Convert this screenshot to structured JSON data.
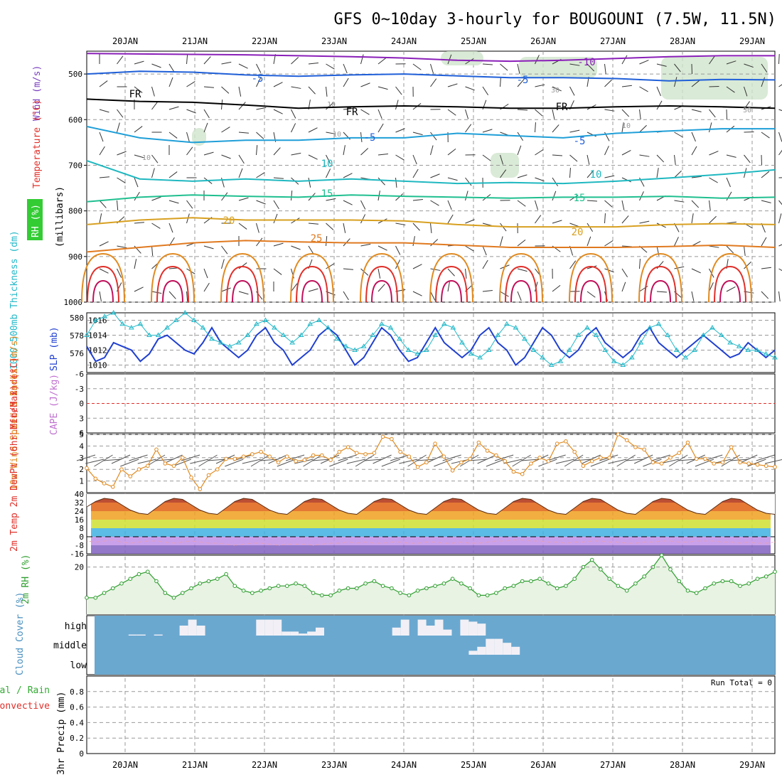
{
  "title": "GFS 0~10day 3-hourly for BOUGOUNI (7.5W, 11.5N)",
  "colors": {
    "temperature": "#e0302a",
    "wind": "#7a3fbf",
    "rh": "#33aa33",
    "slp": "#1f3fd0",
    "thickness": "#22b8c8",
    "lifted_index": "#e0302a",
    "cape": "#c070d0",
    "wind10m": "#e08a20",
    "cloud": "#6aa8d0",
    "rh2m": "#2e9e2e",
    "rh2m_fill": "#e8f3e4",
    "precip_total": "#33aa33",
    "precip_conv": "#e0302a",
    "grid": "#999999"
  },
  "chart_data": [
    {
      "type": "line",
      "name": "upper-air-cross-section",
      "x_dates": [
        "20JAN",
        "21JAN",
        "22JAN",
        "23JAN",
        "24JAN",
        "25JAN",
        "26JAN",
        "27JAN",
        "28JAN",
        "29JAN"
      ],
      "ylabel": "(millibars)",
      "yticks": [
        "500",
        "600",
        "700",
        "800",
        "900",
        "1000"
      ],
      "ylim": [
        450,
        1000
      ],
      "side_labels": {
        "wind": "Wind (m/s)",
        "temperature": "Temperature (°C)",
        "rh": "RH (%)"
      },
      "isotherm_labels": [
        "-10",
        "-5",
        "-5",
        "FR",
        "FR",
        "FR",
        "-5",
        "-5",
        "10",
        "10",
        "15",
        "15",
        "20",
        "20",
        "25"
      ],
      "rh_labels": [
        "10",
        "10",
        "10",
        "30",
        "30",
        "10"
      ],
      "isotherms": [
        {
          "label": "-10",
          "pressure": [
            455,
            456,
            457,
            458,
            460,
            462,
            465,
            470,
            472,
            470,
            466,
            462,
            460,
            460
          ]
        },
        {
          "label": "-5",
          "pressure": [
            500,
            494,
            496,
            502,
            505,
            502,
            500,
            504,
            508,
            508,
            510,
            515,
            512,
            513
          ]
        },
        {
          "label": "FR",
          "pressure": [
            555,
            560,
            562,
            568,
            575,
            572,
            570,
            572,
            575,
            575,
            572,
            570,
            572,
            575
          ]
        },
        {
          "label": "5",
          "pressure": [
            615,
            640,
            650,
            645,
            645,
            640,
            640,
            630,
            635,
            640,
            630,
            625,
            620,
            620
          ]
        },
        {
          "label": "10",
          "pressure": [
            690,
            730,
            735,
            730,
            735,
            730,
            735,
            740,
            738,
            740,
            735,
            728,
            720,
            710
          ]
        },
        {
          "label": "15",
          "pressure": [
            780,
            770,
            765,
            768,
            770,
            765,
            768,
            770,
            772,
            770,
            770,
            768,
            772,
            770
          ]
        },
        {
          "label": "20",
          "pressure": [
            830,
            820,
            815,
            820,
            820,
            820,
            822,
            830,
            835,
            835,
            835,
            830,
            828,
            830
          ]
        },
        {
          "label": "25",
          "pressure": [
            890,
            880,
            870,
            865,
            868,
            870,
            870,
            875,
            880,
            880,
            880,
            878,
            875,
            880
          ]
        }
      ]
    },
    {
      "type": "line",
      "name": "slp-thickness",
      "ylabel_left": "1000-500mb Thickness (dm)",
      "ylabel_right": "SLP (mb)",
      "yticks_left": [
        "580",
        "578",
        "576"
      ],
      "yticks_right": [
        "1016",
        "1014",
        "1012",
        "1010"
      ],
      "ylim_slp": [
        1009,
        1017
      ],
      "series": [
        {
          "name": "SLP (mb)",
          "values": [
            1012.5,
            1010.5,
            1011,
            1013,
            1012.5,
            1012,
            1010.5,
            1011.5,
            1013.5,
            1014,
            1013,
            1012,
            1011.5,
            1013,
            1015,
            1013,
            1012,
            1011,
            1012,
            1014,
            1015,
            1013,
            1012,
            1010,
            1011,
            1012,
            1014,
            1015,
            1014,
            1012,
            1010,
            1011,
            1013,
            1015,
            1014,
            1012,
            1010.5,
            1011,
            1013,
            1015,
            1013,
            1012,
            1011,
            1012,
            1014,
            1015,
            1013,
            1012,
            1010,
            1011,
            1013,
            1015,
            1014,
            1012,
            1011,
            1012,
            1014,
            1015,
            1013,
            1012,
            1011,
            1012,
            1014,
            1015,
            1013,
            1012,
            1011,
            1012,
            1013,
            1014,
            1013,
            1012,
            1011,
            1011.5,
            1013,
            1012,
            1011,
            1012
          ]
        },
        {
          "name": "1000-500mb Thickness (dm)",
          "values": [
            1014,
            1016,
            1016.5,
            1017,
            1015.5,
            1015,
            1015.5,
            1014,
            1014,
            1015,
            1016,
            1017,
            1016,
            1015,
            1013.5,
            1013,
            1012.5,
            1013,
            1014,
            1015.5,
            1016,
            1015,
            1014,
            1013,
            1014,
            1015.5,
            1016,
            1015,
            1013.5,
            1012.5,
            1012,
            1012.5,
            1014,
            1015.5,
            1015,
            1013.5,
            1012,
            1011.5,
            1012,
            1014,
            1015.5,
            1015,
            1013,
            1011.5,
            1011,
            1012,
            1014,
            1015.5,
            1015,
            1013.5,
            1012,
            1011,
            1010,
            1010.5,
            1012,
            1014,
            1015,
            1014,
            1012,
            1010.5,
            1010,
            1011,
            1013,
            1015,
            1015.5,
            1014,
            1012,
            1011,
            1012,
            1014,
            1015,
            1014,
            1013,
            1012.5,
            1012,
            1012,
            1011.5,
            1011
          ]
        }
      ]
    },
    {
      "type": "line",
      "name": "lifted-index-cape",
      "ylabel_left": "Lifted Index",
      "ylabel_right": "CAPE (J/kg)",
      "yticks": [
        "-6",
        "-3",
        "0",
        "3",
        "6"
      ],
      "ylim": [
        -6,
        6
      ],
      "series": [
        {
          "name": "Lifted Index zero line",
          "values": [
            0,
            0
          ]
        }
      ]
    },
    {
      "type": "line",
      "name": "wind-10m",
      "ylabel": "10m Wind Speed & Barbs (m/s)",
      "yticks": [
        "5",
        "4",
        "3",
        "2",
        "1"
      ],
      "ylim": [
        0,
        5
      ],
      "series": [
        {
          "name": "10m Wind Speed",
          "values": [
            2.1,
            1.2,
            0.8,
            0.5,
            2,
            1.4,
            2,
            2.3,
            3.7,
            2.5,
            2.3,
            3,
            1.3,
            0.3,
            1.5,
            2,
            2.9,
            2.9,
            3.1,
            3.3,
            3.5,
            3.1,
            2.6,
            3.1,
            2.7,
            2.8,
            3.2,
            3.2,
            2.8,
            3.5,
            3.9,
            3.4,
            3.3,
            3.4,
            4.8,
            4.6,
            3.5,
            3.1,
            2.2,
            2.6,
            4.2,
            3.1,
            1.9,
            2.6,
            2.9,
            4.3,
            3.6,
            3.2,
            2.7,
            1.8,
            1.6,
            2.5,
            3,
            2.7,
            4.2,
            4.4,
            3.5,
            2.3,
            2.7,
            3,
            3,
            5,
            4.5,
            3.9,
            3.7,
            2.6,
            2.5,
            3,
            3.4,
            4.3,
            2.9,
            2.9,
            2.5,
            2.6,
            3.9,
            2.6,
            2.5,
            2.4,
            2.3,
            2.2
          ]
        }
      ]
    },
    {
      "type": "area",
      "name": "temperature-2m",
      "ylabel": "2m Temp 2m DewPt (6hr Min/Max) (°C)",
      "yticks": [
        "40",
        "32",
        "24",
        "16",
        "8",
        "0",
        "-8",
        "-16"
      ],
      "ylim": [
        -16,
        40
      ],
      "series": [
        {
          "name": "2m Temp",
          "values": [
            28,
            33,
            36,
            35,
            30,
            25,
            22,
            21,
            27,
            33,
            36,
            35,
            30,
            25,
            22,
            21,
            27,
            33,
            36,
            35,
            30,
            25,
            22,
            21,
            27,
            33,
            36,
            35,
            30,
            25,
            22,
            21,
            27,
            33,
            36,
            35,
            30,
            25,
            22,
            21,
            27,
            33,
            36,
            35,
            30,
            25,
            22,
            21,
            27,
            33,
            36,
            35,
            30,
            25,
            22,
            21,
            27,
            33,
            36,
            35,
            30,
            25,
            22,
            21,
            27,
            33,
            36,
            35,
            30,
            25,
            22,
            21,
            27,
            33,
            36,
            35,
            30,
            25,
            22,
            21
          ]
        },
        {
          "name": "2m DewPt",
          "values": [
            -4,
            -5,
            -4,
            -3,
            -5,
            -6,
            -5,
            -4,
            -4,
            -5,
            -6,
            -5,
            -4,
            -5,
            -6,
            -6,
            -7,
            -8,
            -7,
            -6,
            -6,
            -7,
            -8,
            -7,
            -7,
            -7,
            -8,
            -7,
            -6,
            -6,
            -5,
            -6,
            -5,
            -6,
            -6,
            -5,
            -5,
            -6,
            -6,
            -5,
            -5,
            -6,
            -6,
            -5,
            -6,
            -6,
            -5,
            -4,
            -4,
            -3,
            -3,
            -4,
            -4,
            -5,
            -5,
            -6,
            -5,
            -5,
            -4,
            -4,
            -5,
            -5,
            -6,
            -6,
            -5,
            -5,
            -4,
            -4,
            -5,
            -5,
            -4,
            -4,
            -4,
            -5,
            -5,
            -6,
            -5,
            -6,
            -6,
            -5
          ]
        }
      ]
    },
    {
      "type": "line",
      "name": "rh-2m",
      "ylabel": "2m RH (%)",
      "yticks": [
        "20"
      ],
      "ylim": [
        0,
        25
      ],
      "series": [
        {
          "name": "2m RH",
          "values": [
            7,
            7,
            9,
            11,
            13,
            15,
            17,
            18,
            14,
            9,
            7,
            9,
            11,
            13,
            14,
            15,
            17,
            12,
            10,
            9,
            10,
            11,
            12,
            12,
            13,
            12,
            9,
            8,
            8,
            10,
            11,
            11,
            13,
            14,
            12,
            11,
            9,
            8,
            10,
            11,
            12,
            13,
            15,
            13,
            11,
            8,
            8,
            9,
            11,
            12,
            14,
            14,
            15,
            13,
            11,
            12,
            15,
            20,
            23,
            19,
            15,
            12,
            10,
            13,
            16,
            20,
            25,
            19,
            14,
            10,
            9,
            11,
            13,
            14,
            14,
            12,
            13,
            15,
            16,
            18
          ]
        }
      ]
    },
    {
      "type": "heatmap",
      "name": "cloud-cover",
      "ylabel": "Cloud Cover (%)",
      "levels": [
        "high",
        "middle",
        "low"
      ],
      "series": [
        {
          "name": "high",
          "values": [
            0,
            0,
            0,
            0,
            5,
            5,
            0,
            5,
            0,
            0,
            50,
            80,
            50,
            0,
            0,
            0,
            0,
            0,
            0,
            80,
            80,
            80,
            20,
            20,
            10,
            20,
            40,
            0,
            0,
            0,
            0,
            0,
            0,
            0,
            0,
            40,
            80,
            0,
            80,
            50,
            80,
            30,
            0,
            80,
            70,
            60,
            0,
            0,
            0,
            0,
            0,
            0,
            0,
            0,
            0,
            0,
            0,
            0,
            0,
            0,
            0,
            0,
            0,
            0,
            0,
            0,
            0,
            0,
            0,
            0,
            0,
            0,
            0,
            0,
            0,
            0,
            0,
            0,
            0,
            0
          ]
        },
        {
          "name": "middle",
          "values": [
            0,
            0,
            0,
            0,
            0,
            0,
            0,
            0,
            0,
            0,
            0,
            0,
            0,
            0,
            0,
            0,
            0,
            0,
            0,
            0,
            0,
            0,
            0,
            0,
            0,
            0,
            0,
            0,
            0,
            0,
            0,
            0,
            0,
            0,
            0,
            0,
            0,
            0,
            0,
            0,
            0,
            0,
            0,
            0,
            20,
            40,
            80,
            80,
            60,
            40,
            0,
            0,
            0,
            0,
            0,
            0,
            0,
            0,
            0,
            0,
            0,
            0,
            0,
            0,
            0,
            0,
            0,
            0,
            0,
            0,
            0,
            0,
            0,
            0,
            0,
            0,
            0,
            0,
            0,
            0
          ]
        },
        {
          "name": "low",
          "values": [
            0,
            0,
            0,
            0,
            0,
            0,
            0,
            0,
            0,
            0,
            0,
            0,
            0,
            0,
            0,
            0,
            0,
            0,
            0,
            0,
            0,
            0,
            0,
            0,
            0,
            0,
            0,
            0,
            0,
            0,
            0,
            0,
            0,
            0,
            0,
            0,
            0,
            0,
            0,
            0,
            0,
            0,
            0,
            0,
            0,
            0,
            0,
            0,
            0,
            0,
            0,
            0,
            0,
            0,
            0,
            0,
            0,
            0,
            0,
            0,
            0,
            0,
            0,
            0,
            0,
            0,
            0,
            0,
            0,
            0,
            0,
            0,
            0,
            0,
            0,
            0,
            0,
            0,
            0,
            0
          ]
        }
      ]
    },
    {
      "type": "bar",
      "name": "precip-3hr",
      "ylabel": "3hr Precip (mm)",
      "legend": [
        "Total / Rain",
        "Convective"
      ],
      "run_total_label": "Run Total = 0",
      "yticks": [
        "0.8",
        "0.6",
        "0.4",
        "0.2",
        "0"
      ],
      "ylim": [
        0,
        1
      ],
      "values": []
    }
  ]
}
